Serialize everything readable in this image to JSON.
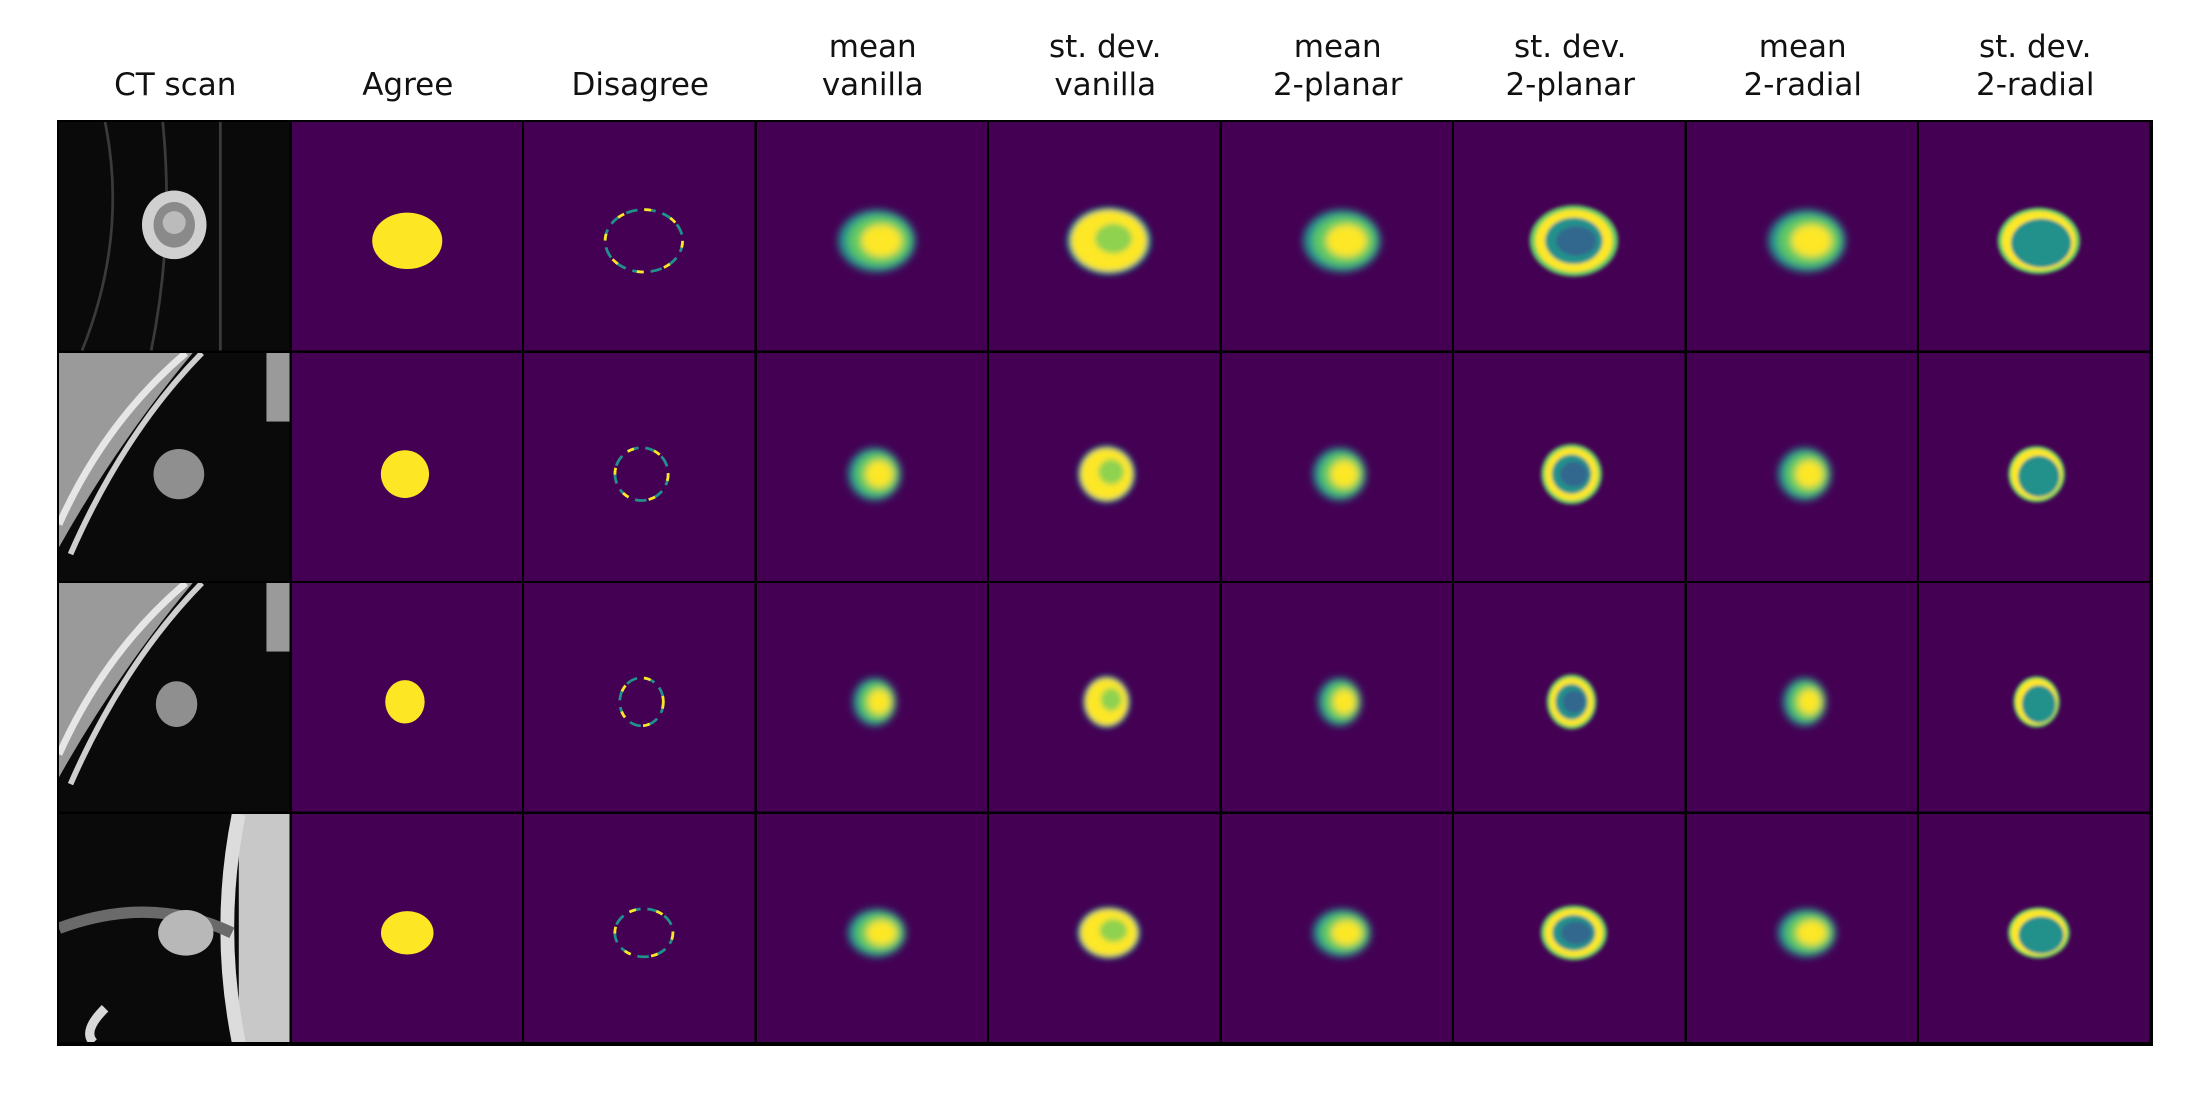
{
  "figure": {
    "columns": [
      "CT scan",
      "Agree",
      "Disagree",
      "mean\nvanilla",
      "st. dev.\nvanilla",
      "mean\n2-planar",
      "st. dev.\n2-planar",
      "mean\n2-radial",
      "st. dev.\n2-radial"
    ],
    "rows": 4,
    "colormap": {
      "background": "#440154",
      "low": "#31688e",
      "mid": "#21918c",
      "high": "#5ec962",
      "max": "#fde725"
    },
    "ct_colors": {
      "dark": "#0a0a0a",
      "tissue": "#8f8f8f",
      "bright": "#e6e6e6"
    }
  }
}
